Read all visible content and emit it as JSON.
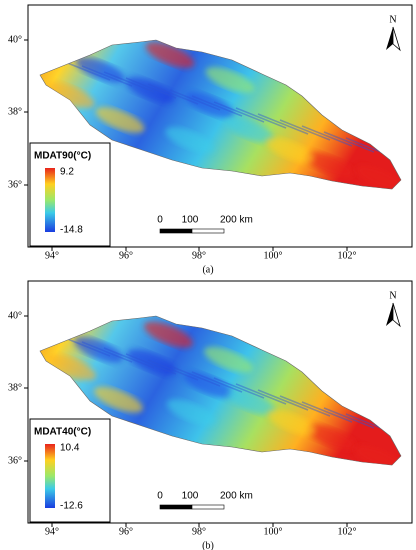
{
  "panels": [
    {
      "legend_title": "MDAT90(°C)",
      "legend_max": 9.2,
      "legend_min": -14.8,
      "lat_ticks": [
        "40°",
        "38°",
        "36°"
      ],
      "lon_ticks": [
        "94°",
        "96°",
        "98°",
        "100°",
        "102°"
      ],
      "scale_labels": [
        "0",
        "100",
        "200 km"
      ],
      "north": "N",
      "caption": "(a)"
    },
    {
      "legend_title": "MDAT40(°C)",
      "legend_max": 10.4,
      "legend_min": -12.6,
      "lat_ticks": [
        "40°",
        "38°",
        "36°"
      ],
      "lon_ticks": [
        "94°",
        "96°",
        "98°",
        "100°",
        "102°"
      ],
      "scale_labels": [
        "0",
        "100",
        "200 km"
      ],
      "north": "N",
      "caption": "(b)"
    }
  ]
}
